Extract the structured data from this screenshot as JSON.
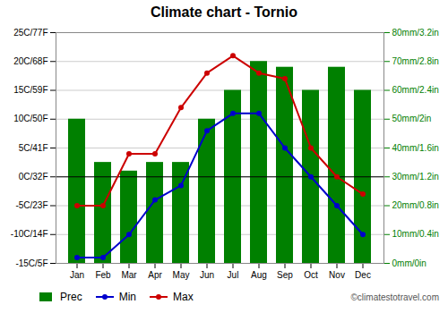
{
  "chart_data": {
    "type": "bar",
    "title": "Climate chart - Tornio",
    "categories": [
      "Jan",
      "Feb",
      "Mar",
      "Apr",
      "May",
      "Jun",
      "Jul",
      "Aug",
      "Sep",
      "Oct",
      "Nov",
      "Dec"
    ],
    "series": [
      {
        "name": "Prec",
        "type": "bar",
        "axis": "y2",
        "color": "#008000",
        "values": [
          50,
          35,
          32,
          35,
          35,
          50,
          60,
          70,
          68,
          60,
          68,
          60
        ]
      },
      {
        "name": "Min",
        "type": "line",
        "marker": "o",
        "color": "#0000cc",
        "values": [
          -14,
          -14,
          -10,
          -4,
          -1.5,
          8,
          11,
          11,
          5,
          0,
          -5,
          -10
        ]
      },
      {
        "name": "Max",
        "type": "line",
        "marker": "o",
        "color": "#cc0000",
        "values": [
          -5,
          -5,
          4,
          4,
          12,
          18,
          21,
          18,
          17,
          5,
          0,
          -3
        ]
      }
    ],
    "ylim": [
      -15,
      25
    ],
    "yticks": [
      {
        "value": -15,
        "label": "-15C/5F"
      },
      {
        "value": -10,
        "label": "-10C/14F"
      },
      {
        "value": -5,
        "label": "-5C/23F"
      },
      {
        "value": 0,
        "label": "0C/32F"
      },
      {
        "value": 5,
        "label": "5C/41F"
      },
      {
        "value": 10,
        "label": "10C/50F"
      },
      {
        "value": 15,
        "label": "15C/59F"
      },
      {
        "value": 20,
        "label": "20C/68F"
      },
      {
        "value": 25,
        "label": "25C/77F"
      }
    ],
    "y2lim": [
      0,
      80
    ],
    "y2ticks": [
      {
        "value": 0,
        "label": "0mm/0in"
      },
      {
        "value": 10,
        "label": "10mm/0.4in"
      },
      {
        "value": 20,
        "label": "20mm/0.8in"
      },
      {
        "value": 30,
        "label": "30mm/1.2in"
      },
      {
        "value": 40,
        "label": "40mm/1.6in"
      },
      {
        "value": 50,
        "label": "50mm/2in"
      },
      {
        "value": 60,
        "label": "60mm/2.4in"
      },
      {
        "value": 70,
        "label": "70mm/2.8in"
      },
      {
        "value": 80,
        "label": "80mm/3.2in"
      }
    ],
    "grid": true,
    "legend": "lower left",
    "annotations": [
      "©climatestotravel.com"
    ]
  }
}
